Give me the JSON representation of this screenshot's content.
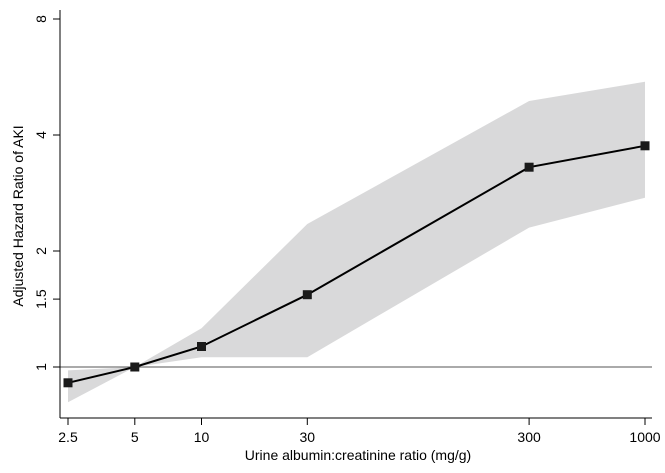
{
  "chart_data": {
    "type": "line",
    "title": "",
    "xlabel": "Urine albumin:creatinine ratio (mg/g)",
    "ylabel": "Adjusted Hazard Ratio of AKI",
    "x_scale": "log",
    "y_scale": "log",
    "xlim": [
      2.3,
      1100
    ],
    "ylim": [
      0.8,
      8.5
    ],
    "x_ticks": [
      2.5,
      5,
      10,
      30,
      300,
      1000
    ],
    "x_tick_labels": [
      "2.5",
      "5",
      "10",
      "30",
      "300",
      "1000"
    ],
    "y_ticks": [
      1,
      1.5,
      2,
      4,
      8
    ],
    "y_tick_labels": [
      "1",
      "1.5",
      "2",
      "4",
      "8"
    ],
    "reference_line": 1,
    "grid": false,
    "legend": "none",
    "series": [
      {
        "x": [
          2.5,
          5,
          10,
          30,
          300,
          1000
        ],
        "y": [
          0.91,
          1.0,
          1.13,
          1.54,
          3.3,
          3.75
        ],
        "ci_lower": [
          0.81,
          1.0,
          1.06,
          1.06,
          2.3,
          2.75
        ],
        "ci_upper": [
          0.98,
          1.0,
          1.26,
          2.35,
          4.9,
          5.5
        ],
        "marker": "square"
      }
    ],
    "colors": {
      "line": "#000000",
      "marker": "#1a1a1a",
      "band": "#d9d9da",
      "axis": "#000000",
      "reference": "#555555"
    }
  }
}
